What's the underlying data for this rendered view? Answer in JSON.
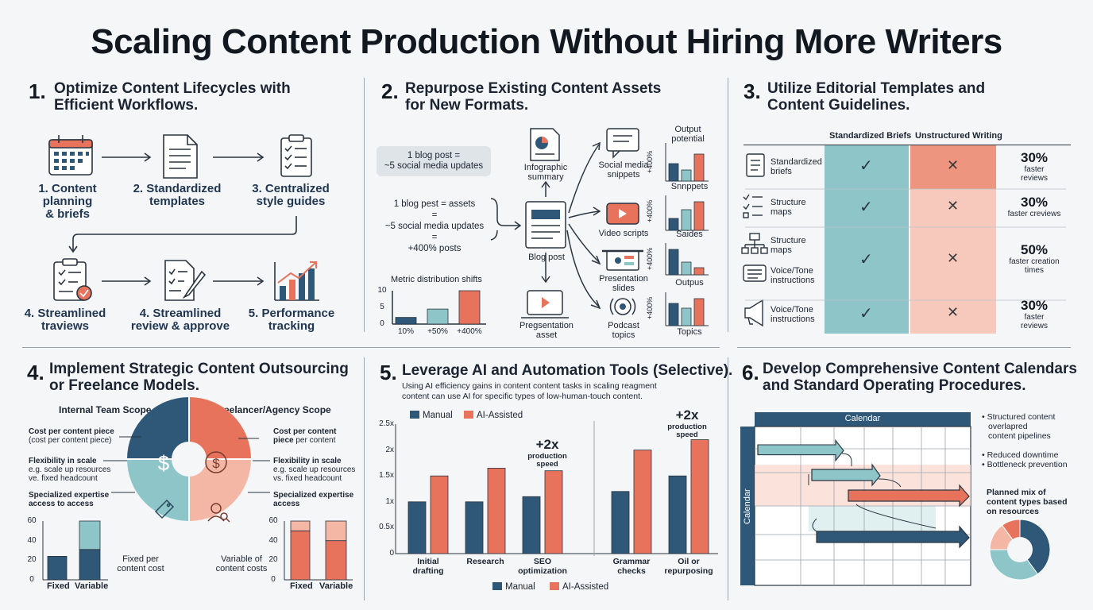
{
  "title": "Scaling Content Production Without Hiring More Writers",
  "colors": {
    "navy": "#2f5777",
    "teal": "#8ec5c8",
    "coral": "#e8735d",
    "salmon": "#f4b6a5",
    "grey": "#6d7a86"
  },
  "s1": {
    "num": "1.",
    "title_line1": "Optimize Content Lifecycles with",
    "title_line2": "Efficient Workflows.",
    "steps": [
      {
        "l1": "1. Content",
        "l2": "planning",
        "l3": "& briefs",
        "icon": "calendar-icon"
      },
      {
        "l1": "2. Standardized",
        "l2": "templates",
        "l3": "",
        "icon": "document-icon"
      },
      {
        "l1": "3. Centralized",
        "l2": "style guides",
        "l3": "",
        "icon": "clipboard-checklist-icon"
      },
      {
        "l1": "4. Streamlined",
        "l2": "traviews",
        "l3": "",
        "icon": "clipboard-approved-icon"
      },
      {
        "l1": "4. Streamlined",
        "l2": "review & approve",
        "l3": "",
        "icon": "edit-document-icon"
      },
      {
        "l1": "5. Performance",
        "l2": "tracking",
        "l3": "",
        "icon": "growth-chart-icon"
      }
    ]
  },
  "s2": {
    "num": "2.",
    "title_line1": "Repurpose Existing Content Assets",
    "title_line2": "for New Formats.",
    "bubble_l1": "1 blog post =",
    "bubble_l2": "~5 social media updates",
    "eq_l1": "1 blog pest = assets",
    "eq_l2": "=",
    "eq_l3": "~5 social media updates",
    "eq_l4": "=",
    "eq_l5": "+400% posts",
    "center": "Blog post",
    "infographic_l1": "Infographic",
    "infographic_l2": "summary",
    "presentation_l1": "Pregsentation",
    "presentation_l2": "asset",
    "out_social_l1": "Social media",
    "out_social_l2": "snippets",
    "out_video": "Video scripts",
    "out_pres_l1": "Presentation",
    "out_pres_l2": "slides",
    "out_podcast_l1": "Podcast",
    "out_podcast_l2": "topics",
    "output_header_l1": "Output",
    "output_header_l2": "potential",
    "mini_axis": "+400%",
    "mini_labels": [
      "Snnppets",
      "Saides",
      "Outpus",
      "Topics"
    ],
    "metric_title": "Metric distribution shifts"
  },
  "s3": {
    "num": "3.",
    "title_line1": "Utilize Editorial Templates and",
    "title_line2": "Content Guidelines.",
    "col1": "Standardized Briefs",
    "col2": "Unstructured Writing",
    "check": "✓",
    "cross": "✕",
    "rows": [
      {
        "labels": [
          "Standardized",
          "briefs"
        ],
        "icon": "list-document-icon",
        "pct": "30%",
        "sub1": "faster",
        "sub2": "reviews"
      },
      {
        "labels": [
          "Structure",
          "maps"
        ],
        "icon": "checklist-icon",
        "pct": "30%",
        "sub1": "faster creviews",
        "sub2": ""
      },
      {
        "labels": [
          "Structure",
          "maps"
        ],
        "icon": "sitemap-icon",
        "pct": "50%",
        "sub1": "faster creation",
        "sub2": "times"
      },
      {
        "labels": [
          "Voice/Tone",
          "instructions"
        ],
        "icon": "message-icon",
        "pct": "",
        "sub1": "",
        "sub2": ""
      },
      {
        "labels": [
          "Voice/Tone",
          "instructions"
        ],
        "icon": "megaphone-icon",
        "pct": "30%",
        "sub1": "faster",
        "sub2": "reviews"
      }
    ]
  },
  "s4": {
    "num": "4.",
    "title_line1": "Implement Strategic Content Outsourcing",
    "title_line2": "or Freelance Models.",
    "left_header": "Internal Team Scope",
    "right_header": "Freelancer/Agency Scope",
    "left_items": [
      {
        "b": "Cost per content piece",
        "n": "(cost per content piece)"
      },
      {
        "b": "Flexibility in scale",
        "n": "e.g. scale up resources",
        "n2": "ve. fixed headcount"
      },
      {
        "b": "Specialized expertise",
        "n": "access to access",
        "bold_n": true
      }
    ],
    "right_items": [
      {
        "b": "Cost per content",
        "b2": "piece",
        "n": "per content"
      },
      {
        "b": "Flexibility in scale",
        "n": "e.g. scale up resources",
        "n2": "vs. fixed headcount"
      },
      {
        "b": "Specialized expertise",
        "b2": "access"
      }
    ],
    "fixed_label_l1": "Fixed per",
    "fixed_label_l2": "content cost",
    "variable_label_l1": "Variable of",
    "variable_label_l2": "content costs",
    "ticks": [
      "60",
      "40",
      "20",
      "0"
    ],
    "cat_fixed": "Fixed",
    "cat_variable": "Variable"
  },
  "s5": {
    "num": "5.",
    "title": "Leverage AI and Automation Tools (Selective).",
    "desc_l1": "Using AI efficiency gains in content content tasks in scaling reagment",
    "desc_l2": "content can use AI for specific types of low-human-touch content.",
    "legend_manual": "Manual",
    "legend_ai": "AI-Assisted",
    "ann1_big": "+2x",
    "ann1_l1": "production",
    "ann1_l2": "speed",
    "ann2_big": "+2x",
    "ann2_l1": "production",
    "ann2_l2": "speed"
  },
  "s6": {
    "num": "6.",
    "title_line1": "Develop Comprehensive Content Calendars",
    "title_line2": "and Standard Operating Procedures.",
    "cal_header": "Calendar",
    "cal_side": "Calendar",
    "bullets1": [
      "• Structured content",
      "overlapred",
      "content pipelines"
    ],
    "bullets2": [
      "• Reduced downtime",
      "• Bottleneck prevention"
    ],
    "mix_l1": "Planned mix of",
    "mix_l2": "content types based",
    "mix_l3": "on resources"
  },
  "chart_data": [
    {
      "type": "bar",
      "title": "Metric distribution shifts",
      "categories": [
        "10%",
        "+50%",
        "+400%"
      ],
      "values": [
        2,
        4.5,
        10
      ],
      "ylim": [
        0,
        10
      ],
      "yticks": [
        "10",
        "5",
        "0"
      ]
    },
    {
      "type": "bar",
      "title": "Output potential",
      "panels": [
        {
          "label": "Snnppets",
          "values": [
            2.2,
            1.4,
            3.4
          ]
        },
        {
          "label": "Saides",
          "values": [
            1.5,
            2.6,
            3.6
          ]
        },
        {
          "label": "Outpus",
          "values": [
            3.2,
            1.6,
            0.9
          ]
        },
        {
          "label": "Topics",
          "values": [
            2.8,
            2.2,
            3.4
          ]
        }
      ]
    },
    {
      "type": "bar",
      "title": "",
      "categories": [
        "Fixed",
        "Variable"
      ],
      "series": [
        {
          "name": "",
          "values": [
            24,
            60
          ],
          "split": [
            0,
            31
          ]
        }
      ],
      "ylim": [
        0,
        60
      ],
      "yticks": [
        "60",
        "40",
        "20",
        "0"
      ]
    },
    {
      "type": "bar",
      "title": "",
      "categories": [
        "Fixed",
        "Variable"
      ],
      "values": [
        60,
        60
      ],
      "split": [
        50,
        40
      ],
      "ylim": [
        0,
        60
      ],
      "yticks": [
        "60",
        "40",
        "20",
        "0"
      ]
    },
    {
      "type": "bar",
      "title": "",
      "categories": [
        "Initial\ndrafting",
        "Research",
        "SEO\noptimization",
        "Grammar\nchecks",
        "Oil or\nrepurposing"
      ],
      "series": [
        {
          "name": "Manual",
          "values": [
            1.0,
            1.0,
            1.1,
            1.2,
            1.5
          ]
        },
        {
          "name": "AI-Assisted",
          "values": [
            1.5,
            1.65,
            1.6,
            2.0,
            2.2
          ]
        }
      ],
      "ylim": [
        0,
        2.5
      ],
      "yticks": [
        "2.5x",
        "2x",
        "1.5x",
        "1x",
        "0.5x",
        "0"
      ]
    },
    {
      "type": "pie",
      "title": "Planned mix of content types based on resources",
      "values": [
        40,
        35,
        15,
        10
      ],
      "colors": [
        "#2f5777",
        "#8ec5c8",
        "#f4b6a5",
        "#e8735d"
      ]
    }
  ]
}
